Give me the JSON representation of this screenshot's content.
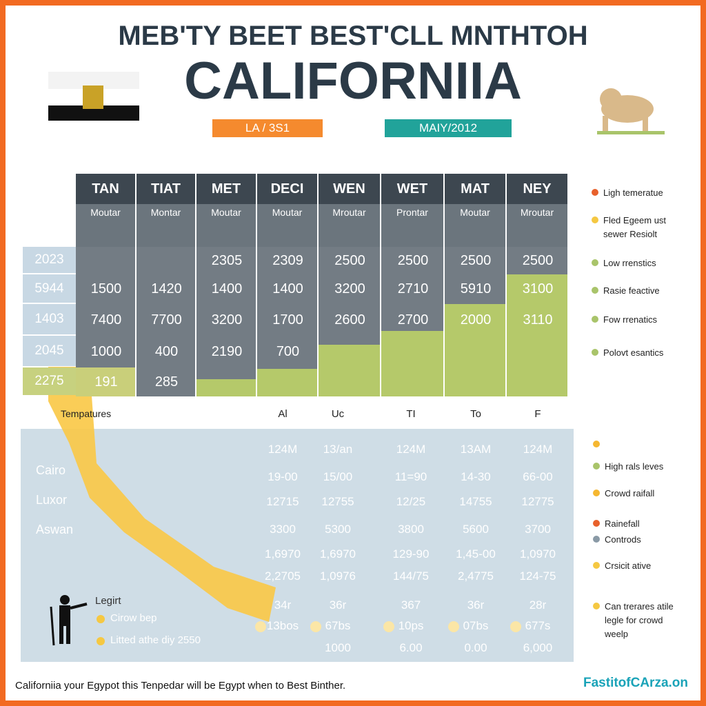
{
  "header": {
    "title": "MEB'TY BEET BEST'CLL MNTHTOH",
    "subtitle": "CALIFORNIIA"
  },
  "badges": [
    {
      "text": "LA / 3S1",
      "color": "#f58a2e"
    },
    {
      "text": "MAIY/2012",
      "color": "#21a39a"
    }
  ],
  "table": {
    "headers": [
      "TAN",
      "TIAT",
      "MET",
      "DECI",
      "WEN",
      "WET",
      "MAT",
      "NEY"
    ],
    "subheaders": [
      "Moutar",
      "Montar",
      "Moutar",
      "Moutar",
      "Mroutar",
      "Prontar",
      "Moutar",
      "Mroutar"
    ],
    "row_labels": [
      "2023",
      "5944",
      "1403",
      "2045",
      "2275"
    ],
    "rows": [
      [
        null,
        null,
        "2305",
        "2309",
        "2500",
        "2500",
        "2500",
        "2500"
      ],
      [
        "1500",
        "1420",
        "1400",
        "1400",
        "3200",
        "2710",
        "5910",
        "3100"
      ],
      [
        "7400",
        "7700",
        "3200",
        "1700",
        "2600",
        "2700",
        "2000",
        "3110"
      ],
      [
        "1000",
        "400",
        "2190",
        "700",
        null,
        null,
        null,
        null
      ],
      [
        "191",
        "285",
        null,
        null,
        null,
        null,
        null,
        null
      ]
    ]
  },
  "legend_top": [
    {
      "text": "Ligh temeratue",
      "color": "#e8612c"
    },
    {
      "text": "Fled Egeem ust sewer Resiolt",
      "color": "#f5c842"
    },
    {
      "text": "Low rrenstics",
      "color": "#a9c46a"
    },
    {
      "text": "Rasie feactive",
      "color": "#a9c46a"
    },
    {
      "text": "Fow rrenatics",
      "color": "#a9c46a"
    },
    {
      "text": "Polovt esantics",
      "color": "#a9c46a"
    }
  ],
  "lower": {
    "title": "Tempatures",
    "columns": [
      "Al",
      "Uc",
      "TI",
      "To",
      "F"
    ],
    "cities": [
      "Cairo",
      "Luxor",
      "Aswan"
    ],
    "rows": [
      [
        "124M",
        "13/an",
        "124M",
        "13AM",
        "124M"
      ],
      [
        "19-00",
        "15/00",
        "11=90",
        "14-30",
        "66-00"
      ],
      [
        "12715",
        "12755",
        "12/25",
        "14755",
        "12775"
      ],
      [
        "3300",
        "5300",
        "3800",
        "5600",
        "3700"
      ],
      [
        "1,6970",
        "1,6970",
        "129-90",
        "1,45-00",
        "1,0970"
      ],
      [
        "2,2705",
        "1,0976",
        "144/75",
        "2,4775",
        "124-75"
      ],
      [
        "34r",
        "36r",
        "367",
        "36r",
        "28r"
      ],
      [
        "13bos",
        "67bs",
        "10ps",
        "07bs",
        "677s"
      ],
      [
        null,
        "1000",
        "6.00",
        "0.00",
        "6,000"
      ]
    ],
    "legend": {
      "title": "Legirt",
      "items": [
        "Cirow bep",
        "Litted athe diy 2550"
      ]
    }
  },
  "legend_bottom": [
    {
      "color": "#f5b731"
    },
    {
      "text": "High rals leves",
      "color": "#a9c46a"
    },
    {
      "text": "Crowd raifall",
      "color": "#f5b731"
    },
    {
      "text": "Rainefall",
      "color": "#e8612c"
    },
    {
      "text": "Controds",
      "color": "#8a9aa6"
    },
    {
      "text": "Crsicit ative",
      "color": "#f5c842"
    },
    {
      "text": "Can trerares atile legle for crowd weelp",
      "color": "#f5c842"
    }
  ],
  "footer": {
    "text": "Californiia your Egypot this Tenpedar will be Egypt when to Best Binther.",
    "brand": "FastitofCArza.on"
  }
}
